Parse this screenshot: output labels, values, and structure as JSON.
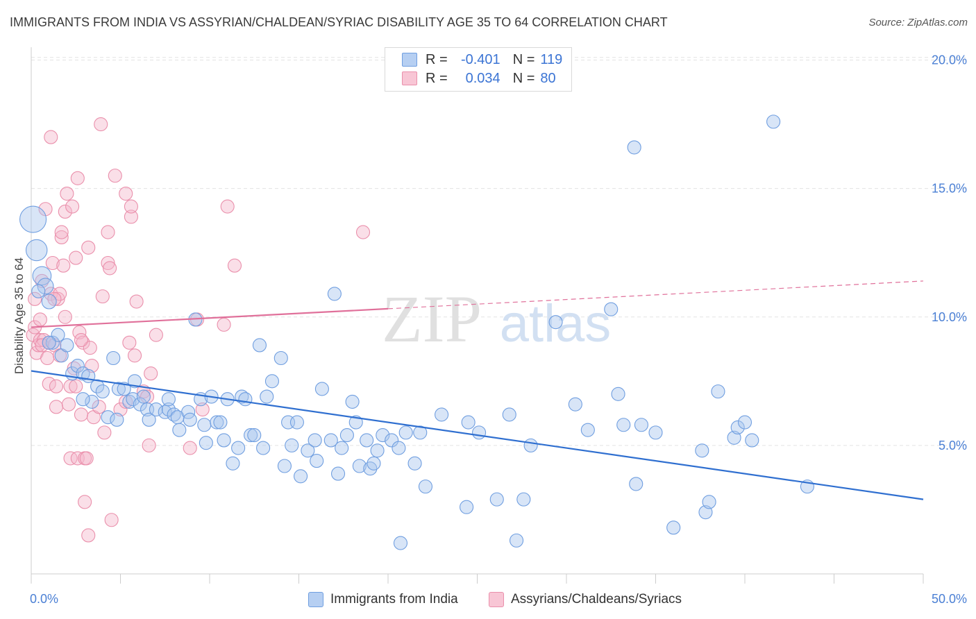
{
  "header": {
    "title": "IMMIGRANTS FROM INDIA VS ASSYRIAN/CHALDEAN/SYRIAC DISABILITY AGE 35 TO 64 CORRELATION CHART",
    "source": "Source: ZipAtlas.com"
  },
  "legend": {
    "r_label": "R =",
    "n_label": "N =",
    "rows": [
      {
        "r": "-0.401",
        "n": "119"
      },
      {
        "r": "0.034",
        "n": "80"
      }
    ]
  },
  "watermark": {
    "zip": "ZIP",
    "atlas": "atlas"
  },
  "colors": {
    "blue_fill": "#a9c6ee",
    "blue_stroke": "#6f9ee0",
    "blue_line": "#2f6fd0",
    "pink_fill": "#f5b8cb",
    "pink_stroke": "#ea8fab",
    "pink_line": "#e0709a",
    "tick_text": "#4a7fd4",
    "grid": "#e3e3e3"
  },
  "chart_data": {
    "type": "scatter",
    "title": "IMMIGRANTS FROM INDIA VS ASSYRIAN/CHALDEAN/SYRIAC DISABILITY AGE 35 TO 64 CORRELATION CHART",
    "xlabel": "",
    "ylabel": "Disability Age 35 to 64",
    "xlim": [
      0,
      50
    ],
    "ylim": [
      0,
      20.5
    ],
    "x_tick_labels": [
      "0.0%",
      "50.0%"
    ],
    "y_ticks": [
      5,
      10,
      15,
      20
    ],
    "y_tick_labels": [
      "5.0%",
      "10.0%",
      "15.0%",
      "20.0%"
    ],
    "grid": true,
    "legend_position": "bottom",
    "series": [
      {
        "name": "Immigrants from India",
        "color": "#6f9ee0",
        "R": -0.401,
        "N": 119,
        "trend": {
          "x": [
            0,
            50
          ],
          "y": [
            7.9,
            2.9
          ],
          "dashed_from": null
        },
        "points": [
          [
            0.1,
            13.8,
            2
          ],
          [
            0.3,
            12.6,
            1.6
          ],
          [
            0.6,
            11.6,
            1.4
          ],
          [
            0.8,
            11.2,
            1.2
          ],
          [
            1.0,
            10.6,
            1.1
          ],
          [
            1.2,
            9.0,
            1
          ],
          [
            1.5,
            9.3,
            1
          ],
          [
            1.7,
            8.5,
            1
          ],
          [
            2.0,
            8.9,
            1
          ],
          [
            2.3,
            7.8,
            1
          ],
          [
            2.6,
            8.1,
            1
          ],
          [
            2.9,
            7.8,
            1
          ],
          [
            3.2,
            7.7,
            1
          ],
          [
            3.4,
            6.7,
            1
          ],
          [
            3.7,
            7.3,
            1
          ],
          [
            4.0,
            7.1,
            1
          ],
          [
            4.3,
            6.1,
            1
          ],
          [
            4.6,
            8.4,
            1
          ],
          [
            4.8,
            6.0,
            1
          ],
          [
            4.9,
            7.2,
            1
          ],
          [
            5.2,
            7.2,
            1
          ],
          [
            5.5,
            6.7,
            1
          ],
          [
            5.7,
            6.8,
            1
          ],
          [
            5.8,
            7.5,
            1
          ],
          [
            6.1,
            6.6,
            1
          ],
          [
            6.3,
            6.9,
            1
          ],
          [
            6.5,
            6.4,
            1
          ],
          [
            6.6,
            6.0,
            1
          ],
          [
            7.0,
            6.4,
            1
          ],
          [
            7.5,
            6.3,
            1
          ],
          [
            7.7,
            6.4,
            1
          ],
          [
            7.7,
            6.8,
            1
          ],
          [
            8.0,
            6.2,
            1
          ],
          [
            8.2,
            6.1,
            1
          ],
          [
            8.3,
            5.6,
            1
          ],
          [
            8.8,
            6.3,
            1
          ],
          [
            8.9,
            6.0,
            1
          ],
          [
            9.2,
            9.9,
            1
          ],
          [
            9.5,
            6.8,
            1
          ],
          [
            9.7,
            5.8,
            1
          ],
          [
            9.8,
            5.1,
            1
          ],
          [
            10.1,
            6.9,
            1
          ],
          [
            10.4,
            5.9,
            1
          ],
          [
            10.6,
            5.9,
            1
          ],
          [
            10.8,
            5.2,
            1
          ],
          [
            11.0,
            6.8,
            1
          ],
          [
            11.3,
            4.3,
            1
          ],
          [
            11.6,
            4.9,
            1
          ],
          [
            11.8,
            6.9,
            1
          ],
          [
            12.0,
            6.8,
            1
          ],
          [
            12.3,
            5.4,
            1
          ],
          [
            12.5,
            5.4,
            1
          ],
          [
            12.8,
            8.9,
            1
          ],
          [
            13.0,
            4.9,
            1
          ],
          [
            13.2,
            6.9,
            1
          ],
          [
            13.5,
            7.5,
            1
          ],
          [
            14.0,
            8.4,
            1
          ],
          [
            14.2,
            4.2,
            1
          ],
          [
            14.4,
            5.9,
            1
          ],
          [
            14.6,
            5.0,
            1
          ],
          [
            14.9,
            5.9,
            1
          ],
          [
            15.1,
            3.8,
            1
          ],
          [
            15.5,
            4.8,
            1
          ],
          [
            15.9,
            5.2,
            1
          ],
          [
            16.0,
            4.4,
            1
          ],
          [
            16.3,
            7.2,
            1
          ],
          [
            16.8,
            5.2,
            1
          ],
          [
            17.0,
            10.9,
            1
          ],
          [
            17.2,
            3.9,
            1
          ],
          [
            17.4,
            4.9,
            1
          ],
          [
            17.7,
            5.4,
            1
          ],
          [
            18.0,
            6.7,
            1
          ],
          [
            18.2,
            5.9,
            1
          ],
          [
            18.4,
            4.2,
            1
          ],
          [
            18.8,
            5.2,
            1
          ],
          [
            19.0,
            4.1,
            1
          ],
          [
            19.2,
            4.3,
            1
          ],
          [
            19.4,
            4.8,
            1
          ],
          [
            19.7,
            5.4,
            1
          ],
          [
            20.2,
            5.2,
            1
          ],
          [
            20.6,
            4.9,
            1
          ],
          [
            20.7,
            1.2,
            1
          ],
          [
            21.0,
            5.5,
            1
          ],
          [
            21.5,
            4.3,
            1
          ],
          [
            21.8,
            5.5,
            1
          ],
          [
            22.1,
            3.4,
            1
          ],
          [
            23.0,
            6.2,
            1
          ],
          [
            24.4,
            2.6,
            1
          ],
          [
            24.5,
            5.9,
            1
          ],
          [
            25.1,
            5.5,
            1
          ],
          [
            26.1,
            2.9,
            1
          ],
          [
            26.8,
            6.2,
            1
          ],
          [
            27.2,
            1.3,
            1
          ],
          [
            27.6,
            2.9,
            1
          ],
          [
            28.0,
            5.0,
            1
          ],
          [
            29.4,
            9.8,
            1
          ],
          [
            30.5,
            6.6,
            1
          ],
          [
            31.2,
            5.6,
            1
          ],
          [
            32.5,
            10.3,
            1
          ],
          [
            32.9,
            7.0,
            1
          ],
          [
            33.2,
            5.8,
            1
          ],
          [
            33.8,
            16.6,
            1
          ],
          [
            33.9,
            3.5,
            1
          ],
          [
            34.2,
            5.8,
            1
          ],
          [
            35.0,
            5.5,
            1
          ],
          [
            36.0,
            1.8,
            1
          ],
          [
            37.6,
            4.8,
            1
          ],
          [
            37.8,
            2.4,
            1
          ],
          [
            38.0,
            2.8,
            1
          ],
          [
            38.5,
            7.1,
            1
          ],
          [
            39.4,
            5.3,
            1
          ],
          [
            39.6,
            5.7,
            1
          ],
          [
            40.0,
            5.9,
            1
          ],
          [
            40.4,
            5.2,
            1
          ],
          [
            41.6,
            17.6,
            1
          ],
          [
            43.5,
            3.4,
            1
          ],
          [
            0.4,
            11.0,
            1
          ],
          [
            1.0,
            9.0,
            1
          ],
          [
            2.9,
            6.8,
            1
          ]
        ]
      },
      {
        "name": "Assyrians/Chaldeans/Syriacs",
        "color": "#ea8fab",
        "R": 0.034,
        "N": 80,
        "trend": {
          "x": [
            0,
            50
          ],
          "y": [
            9.6,
            11.4
          ],
          "dashed_from": 20
        },
        "points": [
          [
            0.1,
            9.3,
            1
          ],
          [
            0.2,
            10.7,
            1
          ],
          [
            0.2,
            9.6,
            1
          ],
          [
            0.3,
            8.6,
            1
          ],
          [
            0.4,
            8.9,
            1
          ],
          [
            0.5,
            9.9,
            1
          ],
          [
            0.5,
            9.1,
            1
          ],
          [
            0.6,
            11.4,
            1
          ],
          [
            0.7,
            9.1,
            1
          ],
          [
            0.8,
            14.2,
            1
          ],
          [
            0.9,
            8.4,
            1
          ],
          [
            1.0,
            9.0,
            1
          ],
          [
            1.0,
            7.4,
            1
          ],
          [
            1.1,
            10.9,
            1
          ],
          [
            1.1,
            17.0,
            1
          ],
          [
            1.2,
            12.1,
            1
          ],
          [
            1.3,
            8.9,
            1
          ],
          [
            1.4,
            7.3,
            1
          ],
          [
            1.4,
            6.5,
            1
          ],
          [
            1.5,
            10.7,
            1
          ],
          [
            1.6,
            10.9,
            1
          ],
          [
            1.6,
            8.5,
            1
          ],
          [
            1.7,
            13.1,
            1
          ],
          [
            1.7,
            13.3,
            1
          ],
          [
            1.8,
            12.0,
            1
          ],
          [
            1.9,
            14.1,
            1
          ],
          [
            1.9,
            10.0,
            1
          ],
          [
            2.0,
            14.8,
            1
          ],
          [
            2.1,
            6.6,
            1
          ],
          [
            2.2,
            7.3,
            1
          ],
          [
            2.2,
            4.5,
            1
          ],
          [
            2.3,
            14.3,
            1
          ],
          [
            2.4,
            8.0,
            1
          ],
          [
            2.5,
            12.3,
            1
          ],
          [
            2.5,
            7.3,
            1
          ],
          [
            2.6,
            4.5,
            1
          ],
          [
            2.6,
            15.4,
            1
          ],
          [
            2.7,
            9.4,
            1
          ],
          [
            2.8,
            6.2,
            1
          ],
          [
            2.9,
            9.0,
            1
          ],
          [
            3.0,
            4.5,
            1
          ],
          [
            3.0,
            2.8,
            1
          ],
          [
            3.1,
            4.5,
            1
          ],
          [
            3.2,
            1.5,
            1
          ],
          [
            3.2,
            12.7,
            1
          ],
          [
            3.3,
            8.8,
            1
          ],
          [
            3.4,
            8.1,
            1
          ],
          [
            3.5,
            6.1,
            1
          ],
          [
            3.8,
            6.5,
            1
          ],
          [
            3.9,
            17.5,
            1
          ],
          [
            4.0,
            10.8,
            1
          ],
          [
            4.1,
            5.5,
            1
          ],
          [
            4.3,
            13.3,
            1
          ],
          [
            4.3,
            12.1,
            1
          ],
          [
            4.4,
            11.9,
            1
          ],
          [
            4.5,
            2.1,
            1
          ],
          [
            4.7,
            15.5,
            1
          ],
          [
            5.0,
            6.4,
            1
          ],
          [
            5.3,
            6.7,
            1
          ],
          [
            5.3,
            14.8,
            1
          ],
          [
            5.5,
            9.0,
            1
          ],
          [
            5.6,
            13.9,
            1
          ],
          [
            5.6,
            14.3,
            1
          ],
          [
            5.8,
            8.5,
            1
          ],
          [
            5.9,
            10.6,
            1
          ],
          [
            6.3,
            7.1,
            1
          ],
          [
            6.5,
            6.9,
            1
          ],
          [
            6.6,
            5.0,
            1
          ],
          [
            6.7,
            7.8,
            1
          ],
          [
            7.0,
            9.3,
            1
          ],
          [
            8.9,
            4.9,
            1
          ],
          [
            9.3,
            9.9,
            1
          ],
          [
            9.6,
            6.4,
            1
          ],
          [
            10.8,
            9.7,
            1
          ],
          [
            11.0,
            14.3,
            1
          ],
          [
            11.4,
            12.0,
            1
          ],
          [
            18.6,
            13.3,
            1
          ],
          [
            0.6,
            8.9,
            1
          ],
          [
            1.3,
            10.7,
            1
          ],
          [
            2.8,
            9.1,
            1
          ]
        ]
      }
    ]
  },
  "bottom_legend": [
    {
      "label": "Immigrants from India"
    },
    {
      "label": "Assyrians/Chaldeans/Syriacs"
    }
  ]
}
